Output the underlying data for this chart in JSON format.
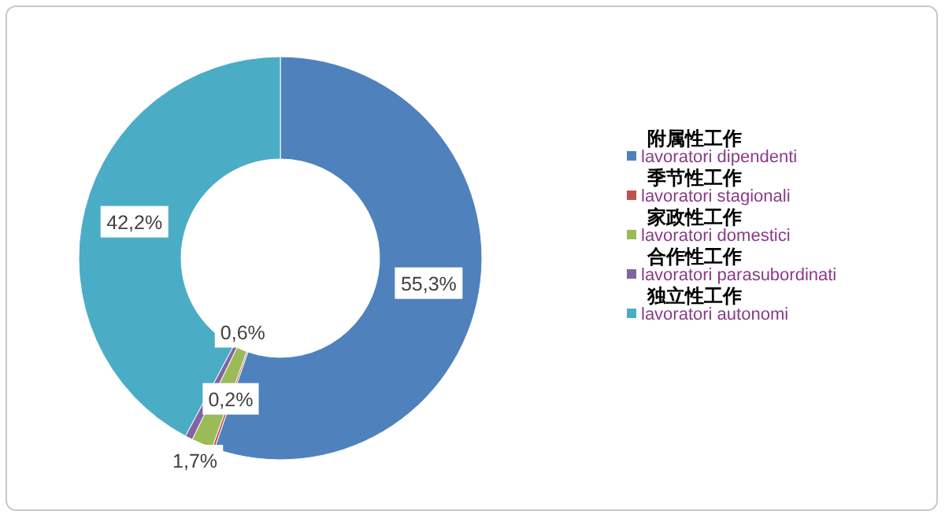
{
  "chart_data": {
    "type": "donut",
    "categories": [
      "附属性工作\nlavoratori dipendenti",
      "季节性工作\nlavoratori stagionali",
      "家政性工作\nlavoratori domestici",
      "合作性工作\nlavoratori parasubordinati",
      "独立性工作\nlavoratori autonomi"
    ],
    "values": [
      55.3,
      0.2,
      1.7,
      0.6,
      42.2
    ],
    "colors": [
      "#4f81bd",
      "#c0504d",
      "#9bbb59",
      "#8064a2",
      "#4bacc6"
    ],
    "value_labels": [
      "55,3%",
      "0,2%",
      "1,7%",
      "0,6%",
      "42,2%"
    ],
    "legend": "right"
  }
}
